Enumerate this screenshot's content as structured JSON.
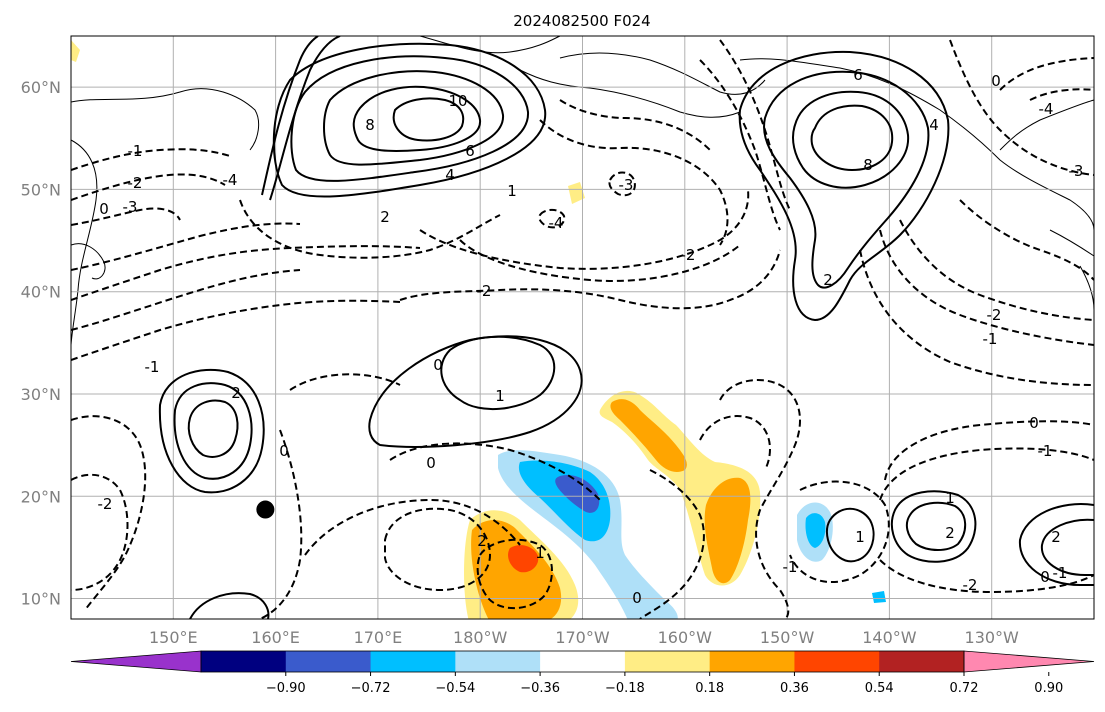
{
  "title": "2024082500 F024",
  "map": {
    "lat_labels": [
      "60°N",
      "50°N",
      "40°N",
      "30°N",
      "20°N",
      "10°N"
    ],
    "lon_labels": [
      "150°E",
      "160°E",
      "170°E",
      "180°W",
      "170°W",
      "160°W",
      "150°W",
      "140°W",
      "130°W"
    ],
    "extent": {
      "lon_min": 140,
      "lon_max": 240,
      "lat_min": 8,
      "lat_max": 65
    },
    "grid": true,
    "marker": {
      "lon": 159,
      "lat": 18.7,
      "color": "#000000"
    }
  },
  "colorbar": {
    "ticks": [
      "−0.90",
      "−0.72",
      "−0.54",
      "−0.36",
      "−0.18",
      "0.18",
      "0.36",
      "0.54",
      "0.72",
      "0.90"
    ],
    "colors": [
      "#9932cc",
      "#000080",
      "#3a5bcc",
      "#00bfff",
      "#afe0f8",
      "#ffffff",
      "#ffed85",
      "#ffa500",
      "#ff4500",
      "#b22222",
      "#ff88b0"
    ],
    "extend": "both"
  },
  "contour_labels": [
    {
      "text": "10"
    },
    {
      "text": "8"
    },
    {
      "text": "6"
    },
    {
      "text": "4"
    },
    {
      "text": "2"
    },
    {
      "text": "1"
    },
    {
      "text": "0"
    },
    {
      "text": "-1"
    },
    {
      "text": "-2"
    },
    {
      "text": "-3"
    },
    {
      "text": "-4"
    },
    {
      "text": "6"
    },
    {
      "text": "8"
    },
    {
      "text": "4"
    },
    {
      "text": "2"
    },
    {
      "text": "0"
    },
    {
      "text": "1"
    },
    {
      "text": "2"
    },
    {
      "text": "0"
    },
    {
      "text": "-2"
    },
    {
      "text": "-1"
    },
    {
      "text": "-2"
    },
    {
      "text": "-4"
    },
    {
      "text": "-3"
    },
    {
      "text": "-4"
    },
    {
      "text": "-2"
    },
    {
      "text": "-1"
    },
    {
      "text": "0"
    },
    {
      "text": "1"
    },
    {
      "text": "2"
    },
    {
      "text": "0"
    },
    {
      "text": "-1"
    },
    {
      "text": "2"
    },
    {
      "text": "1"
    },
    {
      "text": "0"
    },
    {
      "text": "-1"
    },
    {
      "text": "-2"
    },
    {
      "text": "0"
    },
    {
      "text": "-2"
    },
    {
      "text": "1"
    },
    {
      "text": "2"
    },
    {
      "text": "-3"
    },
    {
      "text": "-1"
    },
    {
      "text": "0"
    }
  ]
}
